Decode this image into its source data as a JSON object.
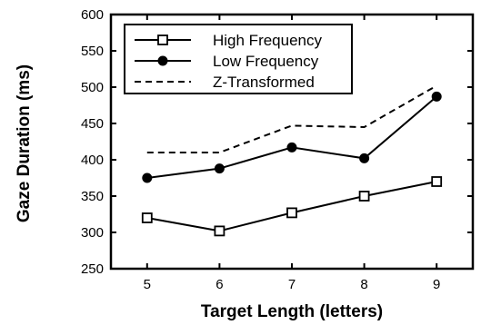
{
  "chart_data": {
    "type": "line",
    "xlabel": "Target Length (letters)",
    "ylabel": "Gaze Duration (ms)",
    "x": [
      5,
      6,
      7,
      8,
      9
    ],
    "xlim": [
      4.5,
      9.5
    ],
    "xticks": [
      5,
      6,
      7,
      8,
      9
    ],
    "ylim": [
      250,
      600
    ],
    "yticks": [
      250,
      300,
      350,
      400,
      450,
      500,
      550,
      600
    ],
    "grid": false,
    "legend_position": "top-left",
    "series": [
      {
        "name": "High Frequency",
        "values": [
          320,
          302,
          327,
          350,
          370
        ],
        "line": "solid",
        "marker": "open-square",
        "color": "#000000"
      },
      {
        "name": "Low Frequency",
        "values": [
          375,
          388,
          417,
          402,
          487
        ],
        "line": "solid",
        "marker": "filled-circle",
        "color": "#000000"
      },
      {
        "name": "Z-Transformed",
        "values": [
          410,
          410,
          447,
          445,
          502
        ],
        "line": "dashed",
        "marker": "none",
        "color": "#000000"
      }
    ]
  }
}
